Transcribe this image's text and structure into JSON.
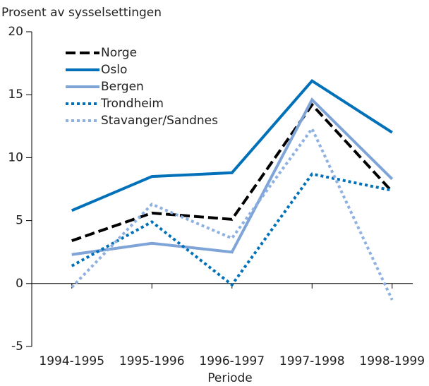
{
  "chart_data": {
    "type": "line",
    "ylabel": "Prosent av sysselsettingen",
    "xlabel": "Periode",
    "categories": [
      "1994-1995",
      "1995-1996",
      "1996-1997",
      "1997-1998",
      "1998-1999"
    ],
    "series": [
      {
        "name": "Norge",
        "color": "#000000",
        "style": "dashed",
        "values": [
          3.4,
          5.6,
          5.1,
          14.2,
          7.3
        ]
      },
      {
        "name": "Oslo",
        "color": "#0071b9",
        "style": "solid",
        "values": [
          5.8,
          8.5,
          8.8,
          16.1,
          12.0
        ]
      },
      {
        "name": "Bergen",
        "color": "#7fa5d8",
        "style": "solid",
        "values": [
          2.3,
          3.2,
          2.5,
          14.6,
          8.3
        ]
      },
      {
        "name": "Trondheim",
        "color": "#0071b9",
        "style": "dotted",
        "values": [
          1.4,
          4.9,
          -0.1,
          8.7,
          7.4
        ]
      },
      {
        "name": "Stavanger/Sandnes",
        "color": "#8fb1e1",
        "style": "dotted",
        "values": [
          -0.3,
          6.3,
          3.6,
          12.3,
          -1.3
        ]
      }
    ],
    "ylim": [
      -5,
      20
    ],
    "yticks": [
      -5,
      0,
      5,
      10,
      15,
      20
    ],
    "legend": "upper left"
  }
}
